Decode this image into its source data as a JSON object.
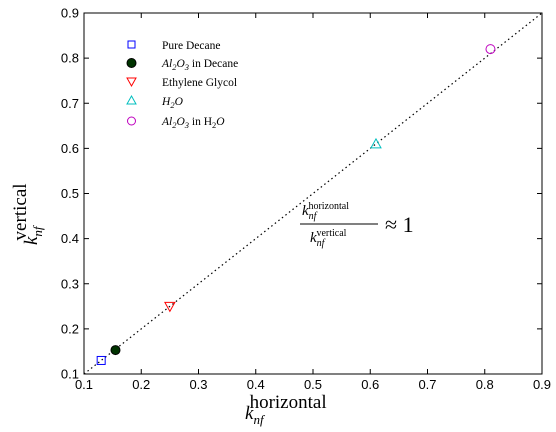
{
  "chart_data": {
    "type": "scatter",
    "title": "",
    "xlabel": {
      "main": "k",
      "sub": "nf",
      "sup": "horizontal"
    },
    "ylabel": {
      "main": "k",
      "sub": "nf",
      "sup": "vertical"
    },
    "xlim": [
      0.1,
      0.9
    ],
    "ylim": [
      0.1,
      0.9
    ],
    "xticks": [
      "0.1",
      "0.2",
      "0.3",
      "0.4",
      "0.5",
      "0.6",
      "0.7",
      "0.8",
      "0.9"
    ],
    "yticks": [
      "0.1",
      "0.2",
      "0.3",
      "0.4",
      "0.5",
      "0.6",
      "0.7",
      "0.8",
      "0.9"
    ],
    "grid": false,
    "legend_position": "top-left",
    "reference_line": {
      "style": "dotted",
      "from": [
        0.1,
        0.1
      ],
      "to": [
        0.9,
        0.9
      ]
    },
    "series": [
      {
        "name": "Pure Decane",
        "marker": "square",
        "color": "#0000ff",
        "fill": "none",
        "x": [
          0.13
        ],
        "y": [
          0.13
        ]
      },
      {
        "name": "Al2O3 in Decane",
        "marker": "circle",
        "color": "#000000",
        "fill": "#003300",
        "x": [
          0.155
        ],
        "y": [
          0.153
        ]
      },
      {
        "name": "Ethylene Glycol",
        "marker": "triangle-down",
        "color": "#ff0000",
        "fill": "none",
        "x": [
          0.25
        ],
        "y": [
          0.25
        ]
      },
      {
        "name": "H2O",
        "marker": "triangle-up",
        "color": "#00bfbf",
        "fill": "none",
        "x": [
          0.61
        ],
        "y": [
          0.61
        ]
      },
      {
        "name": "Al2O3 in H2O",
        "marker": "circle",
        "color": "#bf00bf",
        "fill": "none",
        "x": [
          0.81
        ],
        "y": [
          0.82
        ]
      }
    ],
    "annotation": {
      "numerator": "horizontal",
      "denominator": "vertical",
      "k": "k",
      "sub": "nf",
      "relation": "≈ 1"
    }
  }
}
